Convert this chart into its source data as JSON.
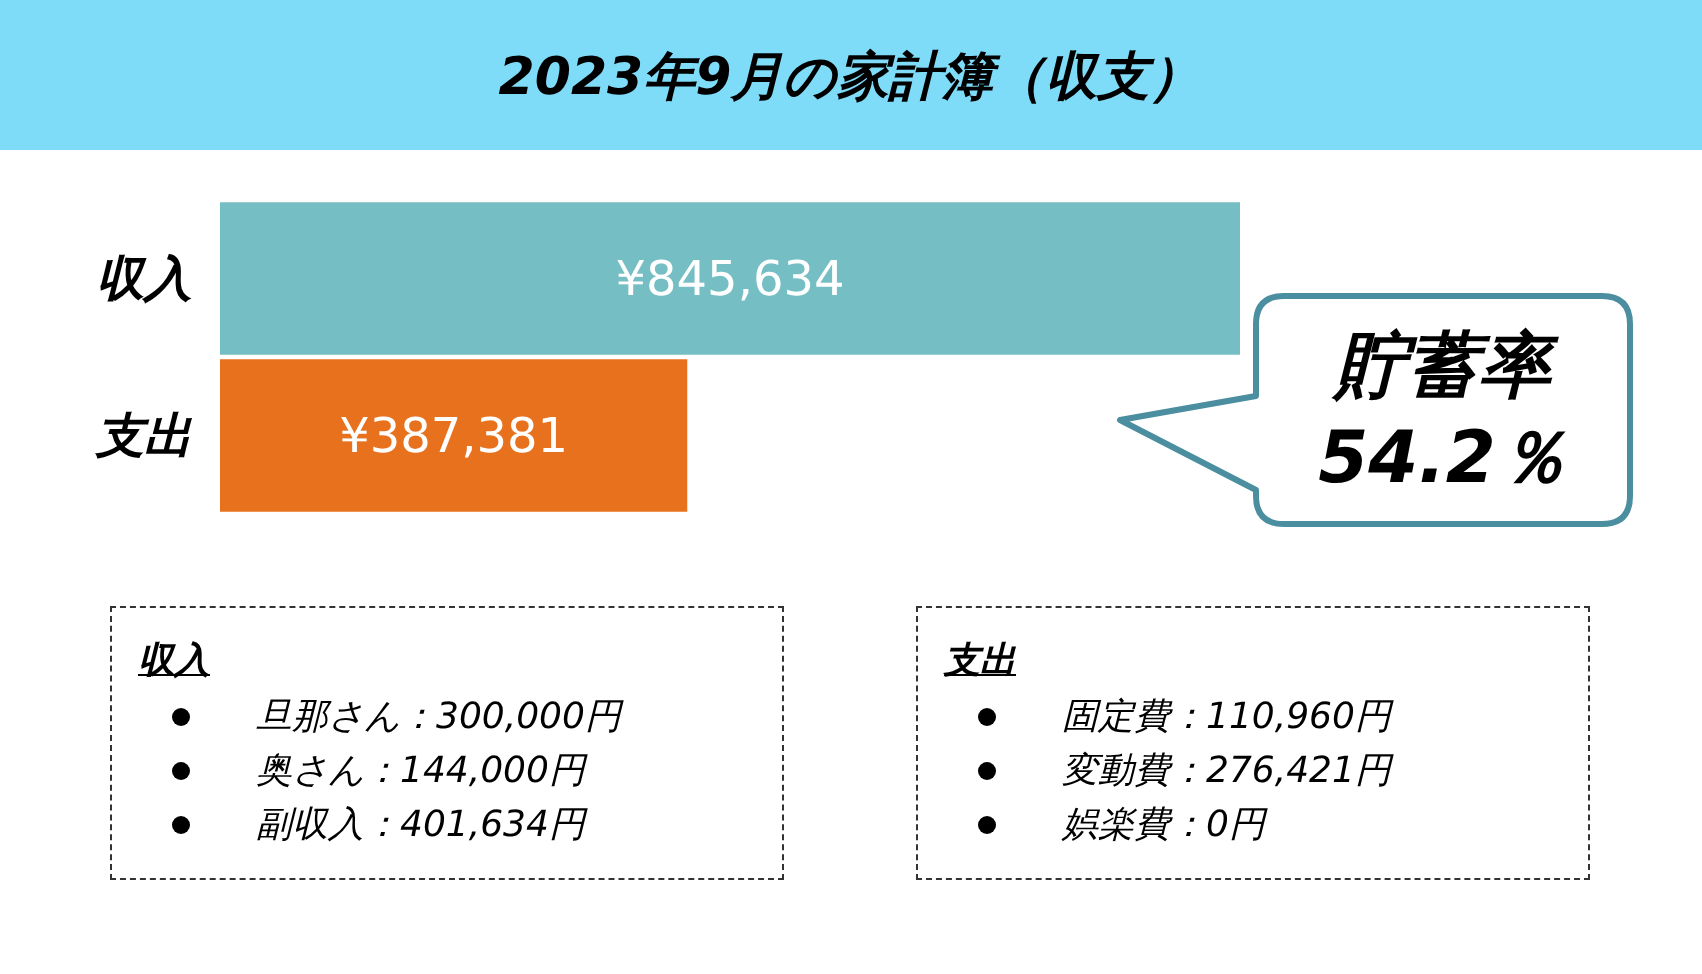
{
  "chart_data": {
    "type": "bar",
    "title": "2023年9月の家計簿（収支）",
    "orientation": "horizontal",
    "categories": [
      "収入",
      "支出"
    ],
    "values": [
      845634,
      387381
    ],
    "colors": [
      "#74bec4",
      "#e8711e"
    ],
    "value_labels": [
      "¥845,634",
      "¥387,381"
    ],
    "annotations": [
      "貯蓄率",
      "54.2％",
      "収入",
      "旦那さん：300,000円",
      "奥さん：144,000円",
      "副収入：401,634円",
      "支出",
      "固定費：110,960円",
      "変動費：276,421円",
      "娯楽費：0円"
    ]
  }
}
